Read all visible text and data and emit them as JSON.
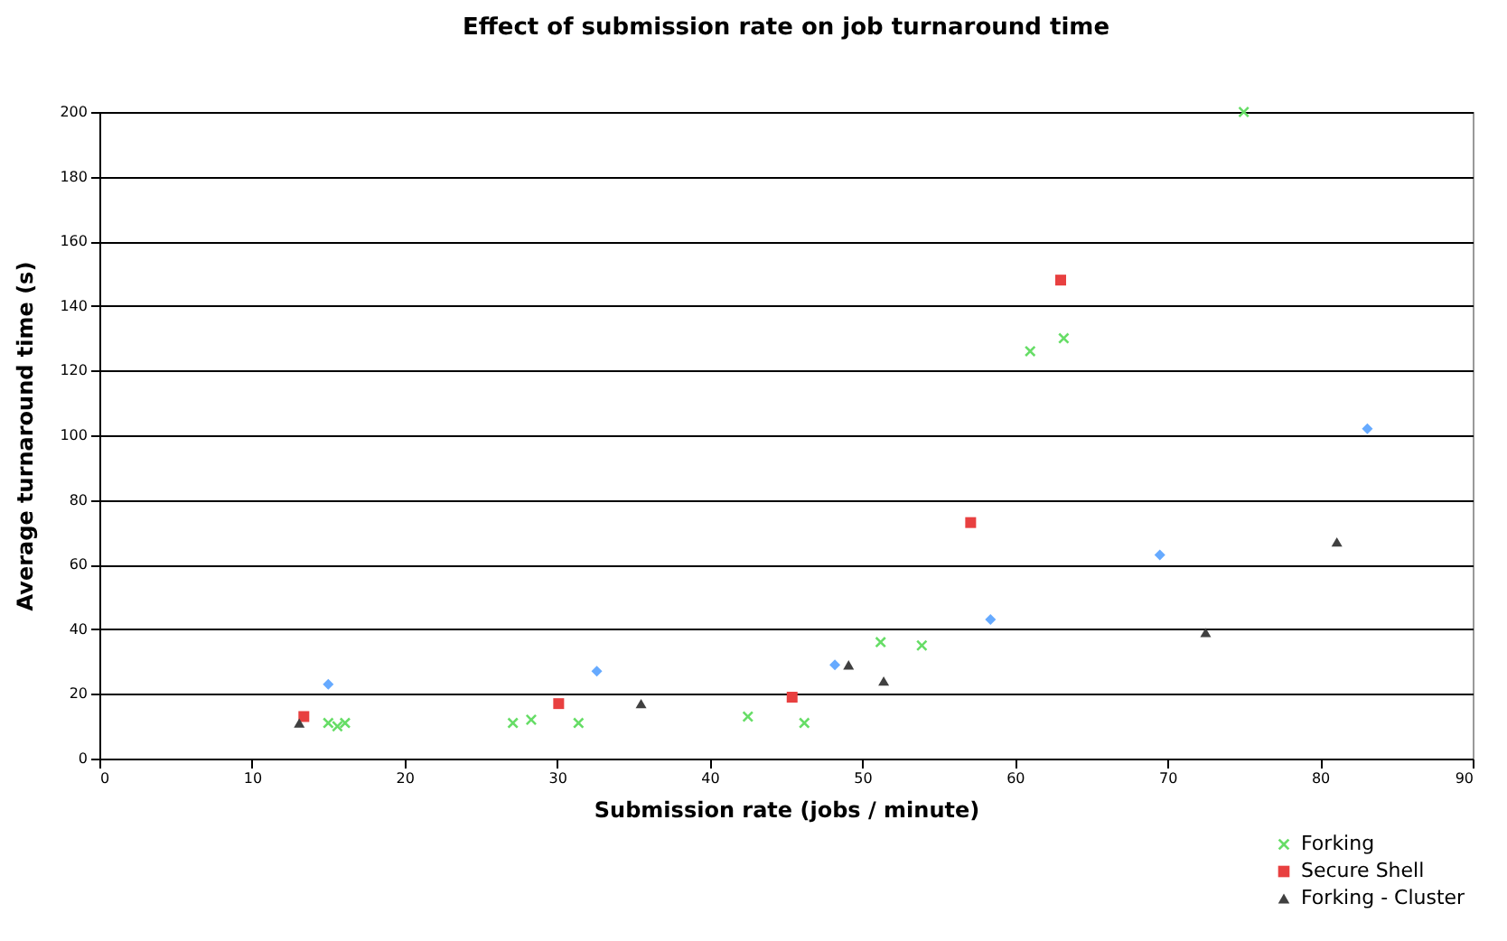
{
  "chart_data": {
    "type": "scatter",
    "title": "Effect of submission rate on job turnaround time",
    "xlabel": "Submission rate (jobs / minute)",
    "ylabel": "Average turnaround time (s)",
    "xlim": [
      0,
      90
    ],
    "xticks": [
      0,
      10,
      20,
      30,
      40,
      50,
      60,
      70,
      80,
      90
    ],
    "ylim": [
      0,
      200
    ],
    "yticks": [
      0,
      20,
      40,
      60,
      80,
      100,
      120,
      140,
      160,
      180,
      200
    ],
    "grid": "y",
    "legend": "bottom right",
    "series": [
      {
        "name": "Forking",
        "color": "#66dd66",
        "marker": "cross",
        "x": [
          15.0,
          15.6,
          16.1,
          27.1,
          28.3,
          31.4,
          42.5,
          46.2,
          51.2,
          53.9,
          61.0,
          63.2,
          75.0
        ],
        "values": [
          11,
          10,
          11,
          11,
          12,
          11,
          13,
          11,
          36,
          35,
          126,
          130,
          200
        ]
      },
      {
        "color": "#66aaff",
        "marker": "diamond",
        "x": [
          15.0,
          32.6,
          48.2,
          58.4,
          69.5,
          83.1
        ],
        "values": [
          23,
          27,
          29,
          43,
          63,
          102
        ]
      },
      {
        "name": "Secure Shell",
        "color": "#e84040",
        "marker": "square",
        "x": [
          13.4,
          30.1,
          45.4,
          57.1,
          63.0
        ],
        "values": [
          13,
          17,
          19,
          73,
          148
        ]
      },
      {
        "name": "Forking - Cluster",
        "color": "#404040",
        "marker": "triangle",
        "x": [
          13.1,
          35.5,
          49.1,
          51.4,
          72.5,
          81.1
        ],
        "values": [
          11,
          17,
          29,
          24,
          39,
          67
        ]
      }
    ]
  }
}
